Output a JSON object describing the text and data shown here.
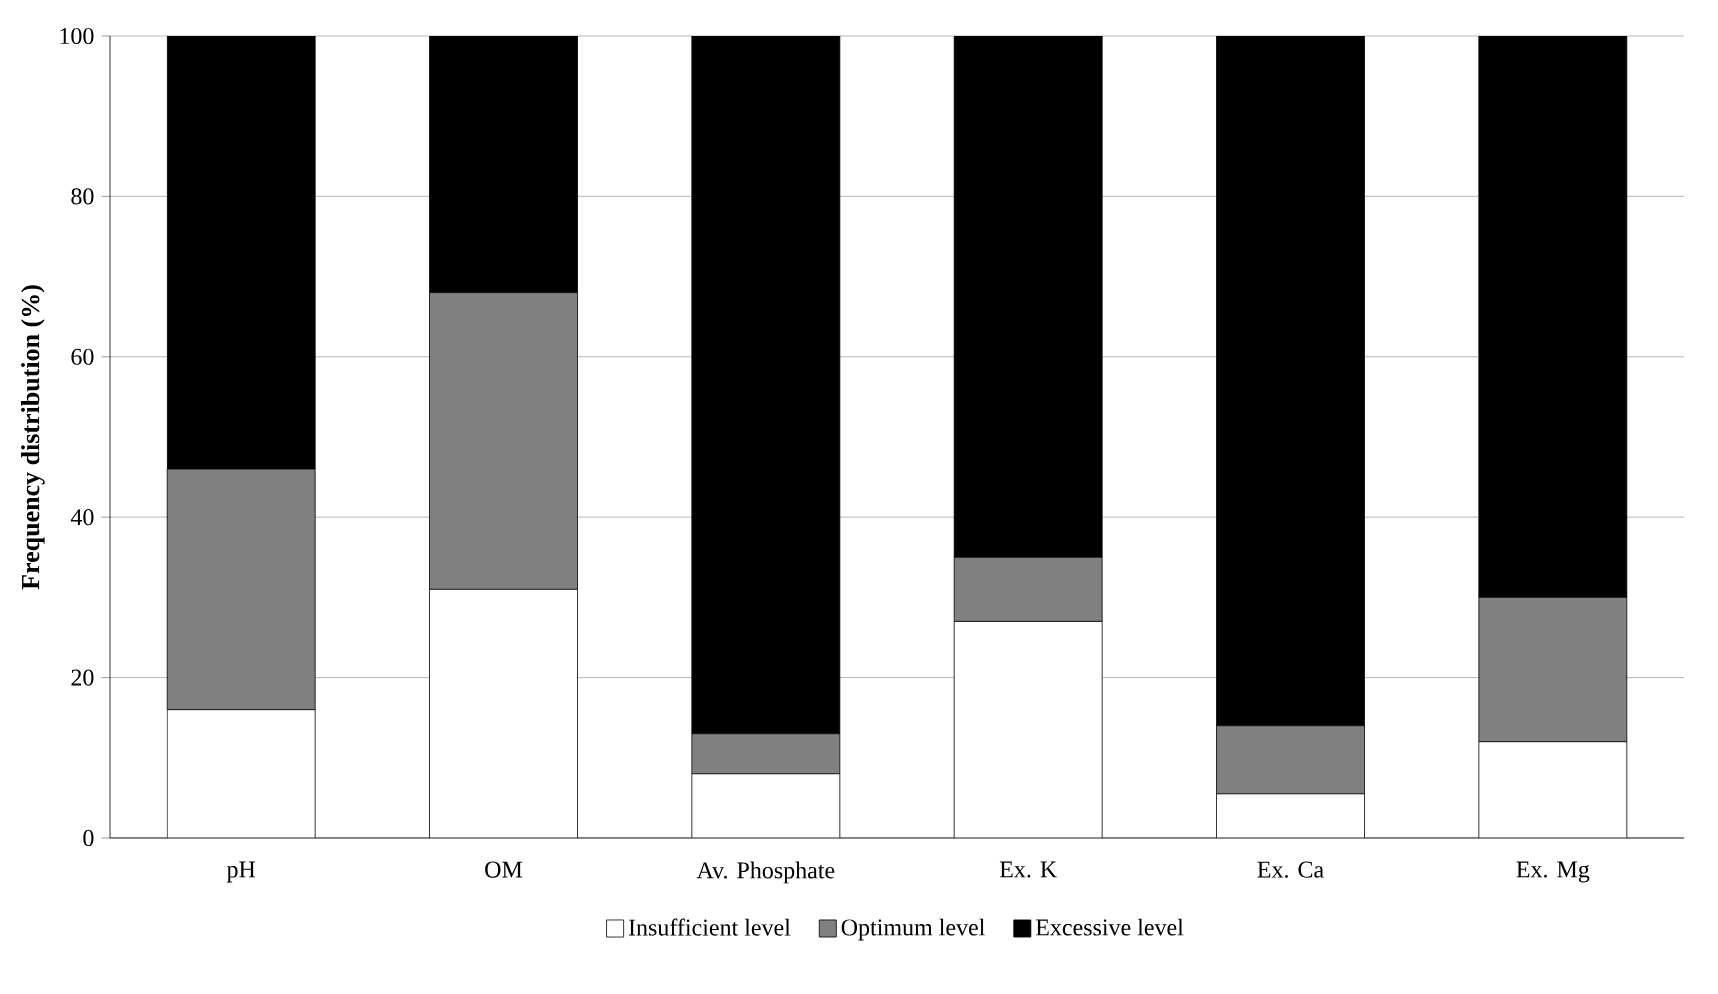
{
  "chart_data": {
    "type": "bar",
    "stacked": true,
    "ylabel": "Frequency distribution (%)",
    "categories": [
      "pH",
      "OM",
      "Av. Phosphate",
      "Ex. K",
      "Ex. Ca",
      "Ex. Mg"
    ],
    "series": [
      {
        "name": "Insufficient level",
        "color": "#ffffff",
        "values": [
          16,
          31,
          8,
          27,
          5.5,
          12
        ]
      },
      {
        "name": "Optimum level",
        "color": "#808080",
        "values": [
          30,
          37,
          5,
          8,
          8.5,
          18
        ]
      },
      {
        "name": "Excessive level",
        "color": "#000000",
        "values": [
          54,
          32,
          87,
          65,
          86,
          70
        ]
      }
    ],
    "ylim": [
      0,
      100
    ],
    "yticks": [
      0,
      20,
      40,
      60,
      80,
      100
    ],
    "grid": "y",
    "legend": "bottom"
  }
}
